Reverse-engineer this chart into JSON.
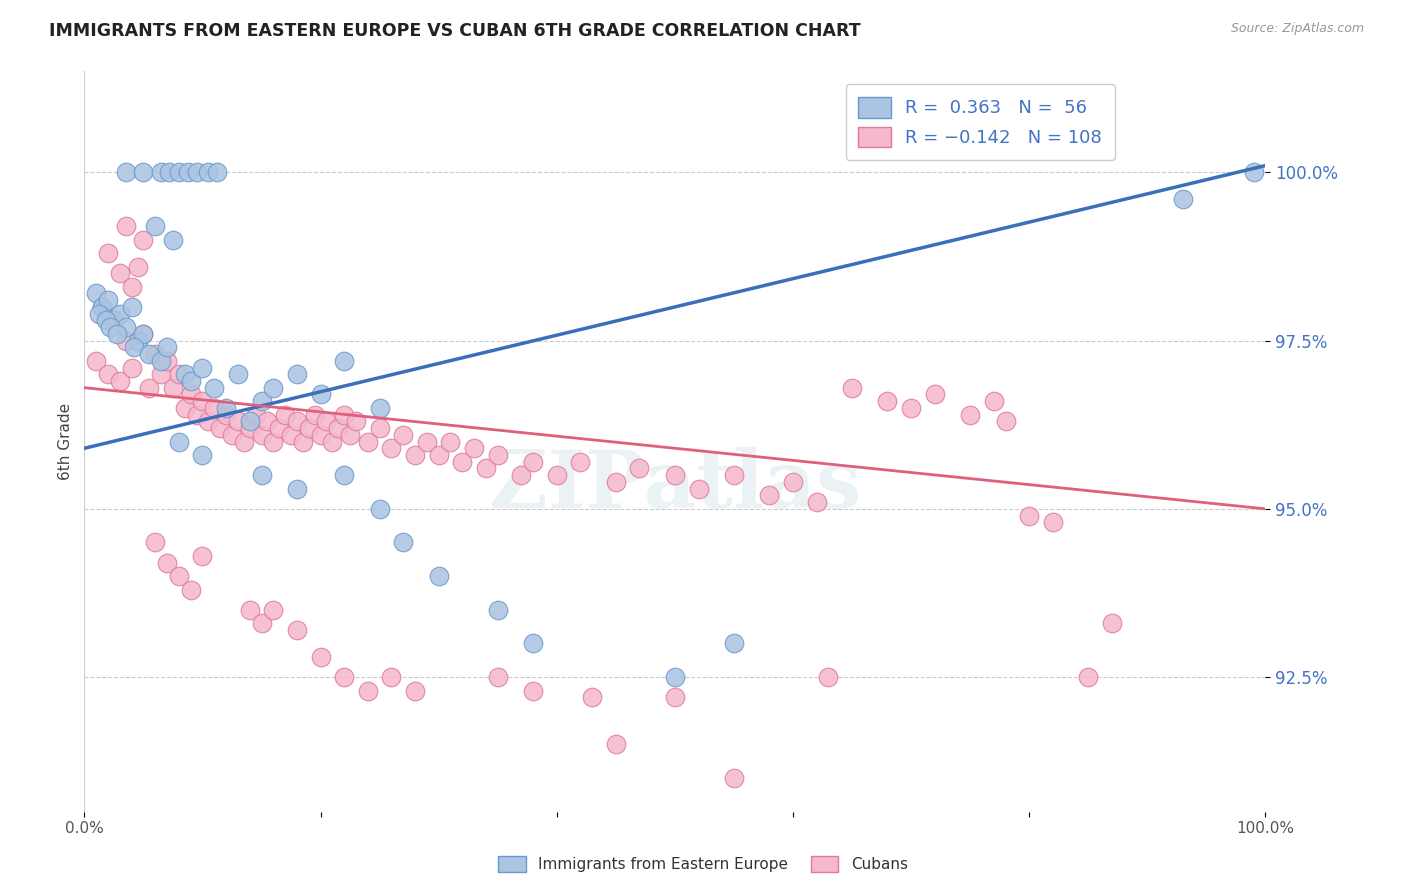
{
  "title": "IMMIGRANTS FROM EASTERN EUROPE VS CUBAN 6TH GRADE CORRELATION CHART",
  "source": "Source: ZipAtlas.com",
  "ylabel": "6th Grade",
  "xlim": [
    0.0,
    100.0
  ],
  "ylim": [
    90.5,
    101.5
  ],
  "yticks": [
    92.5,
    95.0,
    97.5,
    100.0
  ],
  "ytick_labels": [
    "92.5%",
    "95.0%",
    "97.5%",
    "100.0%"
  ],
  "xticks": [
    0.0,
    20.0,
    40.0,
    60.0,
    80.0,
    100.0
  ],
  "xtick_labels": [
    "0.0%",
    "",
    "",
    "",
    "",
    "100.0%"
  ],
  "bottom_legend": [
    "Immigrants from Eastern Europe",
    "Cubans"
  ],
  "blue_color": "#aac4e2",
  "blue_edge_color": "#6699cc",
  "pink_color": "#f5b8cc",
  "pink_edge_color": "#e07898",
  "blue_line_color": "#3a6fba",
  "pink_line_color": "#e0607c",
  "watermark_text": "ZIPatlas",
  "blue_scatter": [
    [
      3.5,
      100.0
    ],
    [
      5.0,
      100.0
    ],
    [
      6.5,
      100.0
    ],
    [
      7.2,
      100.0
    ],
    [
      8.0,
      100.0
    ],
    [
      8.8,
      100.0
    ],
    [
      9.5,
      100.0
    ],
    [
      10.5,
      100.0
    ],
    [
      11.2,
      100.0
    ],
    [
      6.0,
      99.2
    ],
    [
      7.5,
      99.0
    ],
    [
      1.0,
      98.2
    ],
    [
      1.5,
      98.0
    ],
    [
      2.0,
      98.1
    ],
    [
      2.5,
      97.8
    ],
    [
      3.0,
      97.9
    ],
    [
      3.5,
      97.7
    ],
    [
      4.0,
      98.0
    ],
    [
      4.5,
      97.5
    ],
    [
      5.0,
      97.6
    ],
    [
      1.2,
      97.9
    ],
    [
      1.8,
      97.8
    ],
    [
      2.2,
      97.7
    ],
    [
      2.8,
      97.6
    ],
    [
      4.2,
      97.4
    ],
    [
      5.5,
      97.3
    ],
    [
      6.5,
      97.2
    ],
    [
      7.0,
      97.4
    ],
    [
      8.5,
      97.0
    ],
    [
      9.0,
      96.9
    ],
    [
      10.0,
      97.1
    ],
    [
      11.0,
      96.8
    ],
    [
      13.0,
      97.0
    ],
    [
      15.0,
      96.6
    ],
    [
      16.0,
      96.8
    ],
    [
      18.0,
      97.0
    ],
    [
      20.0,
      96.7
    ],
    [
      22.0,
      97.2
    ],
    [
      25.0,
      96.5
    ],
    [
      12.0,
      96.5
    ],
    [
      14.0,
      96.3
    ],
    [
      8.0,
      96.0
    ],
    [
      10.0,
      95.8
    ],
    [
      15.0,
      95.5
    ],
    [
      18.0,
      95.3
    ],
    [
      22.0,
      95.5
    ],
    [
      25.0,
      95.0
    ],
    [
      27.0,
      94.5
    ],
    [
      30.0,
      94.0
    ],
    [
      35.0,
      93.5
    ],
    [
      38.0,
      93.0
    ],
    [
      50.0,
      92.5
    ],
    [
      55.0,
      93.0
    ],
    [
      93.0,
      99.6
    ],
    [
      99.0,
      100.0
    ]
  ],
  "pink_scatter": [
    [
      3.5,
      99.2
    ],
    [
      5.0,
      99.0
    ],
    [
      2.0,
      98.8
    ],
    [
      3.0,
      98.5
    ],
    [
      4.0,
      98.3
    ],
    [
      4.5,
      98.6
    ],
    [
      1.5,
      98.0
    ],
    [
      2.5,
      97.8
    ],
    [
      3.5,
      97.5
    ],
    [
      5.0,
      97.6
    ],
    [
      6.0,
      97.3
    ],
    [
      1.0,
      97.2
    ],
    [
      2.0,
      97.0
    ],
    [
      3.0,
      96.9
    ],
    [
      4.0,
      97.1
    ],
    [
      5.5,
      96.8
    ],
    [
      6.5,
      97.0
    ],
    [
      7.0,
      97.2
    ],
    [
      7.5,
      96.8
    ],
    [
      8.0,
      97.0
    ],
    [
      8.5,
      96.5
    ],
    [
      9.0,
      96.7
    ],
    [
      9.5,
      96.4
    ],
    [
      10.0,
      96.6
    ],
    [
      10.5,
      96.3
    ],
    [
      11.0,
      96.5
    ],
    [
      11.5,
      96.2
    ],
    [
      12.0,
      96.4
    ],
    [
      12.5,
      96.1
    ],
    [
      13.0,
      96.3
    ],
    [
      13.5,
      96.0
    ],
    [
      14.0,
      96.2
    ],
    [
      14.5,
      96.4
    ],
    [
      15.0,
      96.1
    ],
    [
      15.5,
      96.3
    ],
    [
      16.0,
      96.0
    ],
    [
      16.5,
      96.2
    ],
    [
      17.0,
      96.4
    ],
    [
      17.5,
      96.1
    ],
    [
      18.0,
      96.3
    ],
    [
      18.5,
      96.0
    ],
    [
      19.0,
      96.2
    ],
    [
      19.5,
      96.4
    ],
    [
      20.0,
      96.1
    ],
    [
      20.5,
      96.3
    ],
    [
      21.0,
      96.0
    ],
    [
      21.5,
      96.2
    ],
    [
      22.0,
      96.4
    ],
    [
      22.5,
      96.1
    ],
    [
      23.0,
      96.3
    ],
    [
      24.0,
      96.0
    ],
    [
      25.0,
      96.2
    ],
    [
      26.0,
      95.9
    ],
    [
      27.0,
      96.1
    ],
    [
      28.0,
      95.8
    ],
    [
      29.0,
      96.0
    ],
    [
      30.0,
      95.8
    ],
    [
      31.0,
      96.0
    ],
    [
      32.0,
      95.7
    ],
    [
      33.0,
      95.9
    ],
    [
      34.0,
      95.6
    ],
    [
      35.0,
      95.8
    ],
    [
      37.0,
      95.5
    ],
    [
      38.0,
      95.7
    ],
    [
      40.0,
      95.5
    ],
    [
      42.0,
      95.7
    ],
    [
      45.0,
      95.4
    ],
    [
      47.0,
      95.6
    ],
    [
      50.0,
      95.5
    ],
    [
      52.0,
      95.3
    ],
    [
      55.0,
      95.5
    ],
    [
      58.0,
      95.2
    ],
    [
      60.0,
      95.4
    ],
    [
      62.0,
      95.1
    ],
    [
      65.0,
      96.8
    ],
    [
      68.0,
      96.6
    ],
    [
      70.0,
      96.5
    ],
    [
      72.0,
      96.7
    ],
    [
      75.0,
      96.4
    ],
    [
      77.0,
      96.6
    ],
    [
      78.0,
      96.3
    ],
    [
      80.0,
      94.9
    ],
    [
      82.0,
      94.8
    ],
    [
      85.0,
      92.5
    ],
    [
      87.0,
      93.3
    ],
    [
      6.0,
      94.5
    ],
    [
      7.0,
      94.2
    ],
    [
      8.0,
      94.0
    ],
    [
      9.0,
      93.8
    ],
    [
      10.0,
      94.3
    ],
    [
      14.0,
      93.5
    ],
    [
      15.0,
      93.3
    ],
    [
      16.0,
      93.5
    ],
    [
      18.0,
      93.2
    ],
    [
      20.0,
      92.8
    ],
    [
      22.0,
      92.5
    ],
    [
      24.0,
      92.3
    ],
    [
      26.0,
      92.5
    ],
    [
      28.0,
      92.3
    ],
    [
      35.0,
      92.5
    ],
    [
      38.0,
      92.3
    ],
    [
      43.0,
      92.2
    ],
    [
      45.0,
      91.5
    ],
    [
      50.0,
      92.2
    ],
    [
      63.0,
      92.5
    ],
    [
      55.0,
      91.0
    ]
  ],
  "blue_trend": {
    "x_start": 0,
    "x_end": 100,
    "y_start": 95.9,
    "y_end": 100.1
  },
  "pink_trend": {
    "x_start": 0,
    "x_end": 100,
    "y_start": 96.8,
    "y_end": 95.0
  }
}
